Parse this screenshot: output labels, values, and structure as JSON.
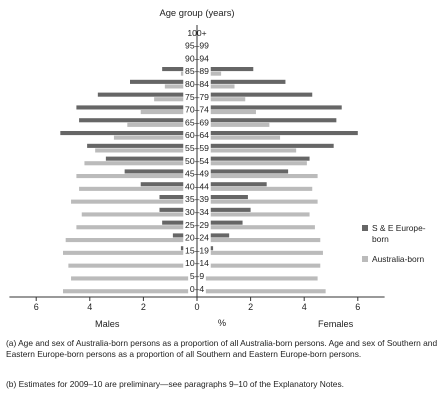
{
  "chart_data": {
    "type": "bar",
    "orientation": "horizontal",
    "subtype": "population-pyramid",
    "axis_title": "Age group (years)",
    "unit_label": "%",
    "left_label": "Males",
    "right_label": "Females",
    "categories": [
      "100+",
      "95–99",
      "90–94",
      "85–89",
      "80–84",
      "75–79",
      "70–74",
      "65–69",
      "60–64",
      "55–59",
      "50–54",
      "45–49",
      "40–44",
      "35–39",
      "30–34",
      "25–29",
      "20–24",
      "15–19",
      "10–14",
      "5–9",
      "0–4"
    ],
    "xlim": [
      -7,
      7
    ],
    "x_ticks": [
      6,
      4,
      2,
      0,
      2,
      4,
      6
    ],
    "series": [
      {
        "name": "S & E Europe-born",
        "color": "#666666",
        "males": [
          0.0,
          0.1,
          0.3,
          1.3,
          2.5,
          3.7,
          4.5,
          4.4,
          5.1,
          4.1,
          3.4,
          2.7,
          2.1,
          1.4,
          1.4,
          1.3,
          0.9,
          0.6,
          0.2,
          0.1,
          0.1
        ],
        "females": [
          0.0,
          0.2,
          0.5,
          2.1,
          3.3,
          4.3,
          5.4,
          5.2,
          6.0,
          5.1,
          4.2,
          3.4,
          2.6,
          1.9,
          2.0,
          1.7,
          1.2,
          0.6,
          0.3,
          0.2,
          0.1
        ]
      },
      {
        "name": "Australia-born",
        "color": "#bbbbbb",
        "males": [
          0.0,
          0.1,
          0.3,
          0.6,
          1.2,
          1.6,
          2.1,
          2.6,
          3.1,
          3.8,
          4.2,
          4.5,
          4.4,
          4.7,
          4.3,
          4.5,
          4.9,
          5.0,
          4.8,
          4.7,
          5.0
        ],
        "females": [
          0.0,
          0.1,
          0.4,
          0.9,
          1.4,
          1.8,
          2.2,
          2.7,
          3.1,
          3.7,
          4.1,
          4.5,
          4.3,
          4.5,
          4.2,
          4.4,
          4.6,
          4.7,
          4.6,
          4.5,
          4.8
        ]
      }
    ]
  },
  "footnotes": [
    "(a) Age and sex of Australia-born persons as a proportion of all Australia-born persons. Age and sex of Southern and Eastern Europe-born persons as a proportion of all Southern and Eastern Europe-born persons.",
    "(b) Estimates for 2009–10 are preliminary—see paragraphs 9–10 of the Explanatory Notes."
  ]
}
